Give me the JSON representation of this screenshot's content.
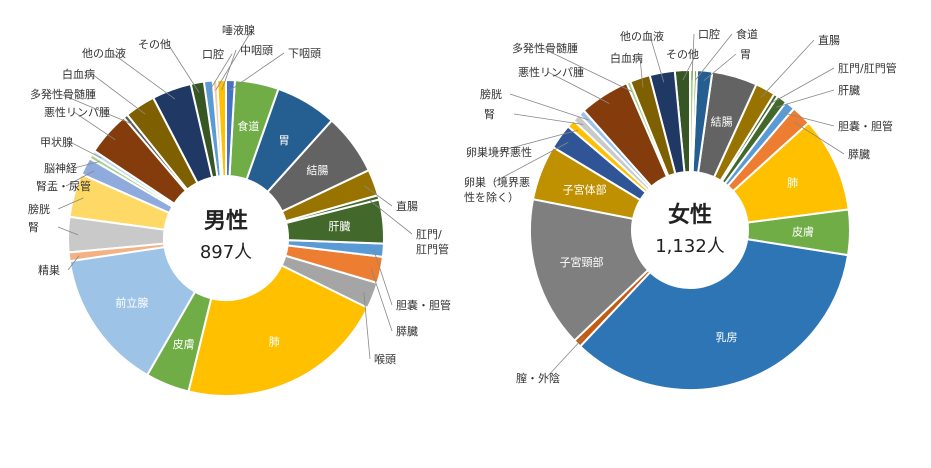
{
  "chart_data": [
    {
      "type": "pie",
      "donut": true,
      "title": "男性",
      "total_label": "897人",
      "slices": [
        {
          "label": "下咽頭",
          "value": 1,
          "color": "#4472C4"
        },
        {
          "label": "食道",
          "value": 5,
          "color": "#70AD47"
        },
        {
          "label": "胃",
          "value": 7,
          "color": "#255E91"
        },
        {
          "label": "結腸",
          "value": 7,
          "color": "#636363"
        },
        {
          "label": "直腸",
          "value": 3,
          "color": "#997300"
        },
        {
          "label": "肛門/\n肛門管",
          "value": 0.5,
          "color": "#43682B"
        },
        {
          "label": "肝臓",
          "value": 5,
          "color": "#43682B"
        },
        {
          "label": "胆嚢・胆管",
          "value": 1.5,
          "color": "#5B9BD5"
        },
        {
          "label": "膵臓",
          "value": 3,
          "color": "#ED7D31"
        },
        {
          "label": "喉頭",
          "value": 3,
          "color": "#A5A5A5"
        },
        {
          "label": "肺",
          "value": 24,
          "color": "#FFC000"
        },
        {
          "label": "皮膚",
          "value": 5,
          "color": "#70AD47"
        },
        {
          "label": "前立腺",
          "value": 16,
          "color": "#9DC3E6"
        },
        {
          "label": "精巣",
          "value": 1,
          "color": "#F4B183"
        },
        {
          "label": "腎",
          "value": 4,
          "color": "#C9C9C9"
        },
        {
          "label": "膀胱",
          "value": 5,
          "color": "#FFD966"
        },
        {
          "label": "腎盂・尿管",
          "value": 2,
          "color": "#8FAADC"
        },
        {
          "label": "脳神経",
          "value": 0.5,
          "color": "#A9D18E"
        },
        {
          "label": "甲状腺",
          "value": 0.5,
          "color": "#BDD7EE"
        },
        {
          "label": "悪性リンパ腫",
          "value": 5,
          "color": "#843C0C"
        },
        {
          "label": "多発性骨髄腫",
          "value": 0.5,
          "color": "#595959"
        },
        {
          "label": "白血病",
          "value": 3.5,
          "color": "#7F6000"
        },
        {
          "label": "他の血液",
          "value": 4.5,
          "color": "#203864"
        },
        {
          "label": "その他",
          "value": 1.5,
          "color": "#375623"
        },
        {
          "label": "口腔",
          "value": 1,
          "color": "#5B9BD5"
        },
        {
          "label": "唾液腺",
          "value": 0.5,
          "color": "#F8CBAD"
        },
        {
          "label": "中咽頭",
          "value": 1,
          "color": "#FFC000"
        }
      ]
    },
    {
      "type": "pie",
      "donut": true,
      "title": "女性",
      "total_label": "1,132人",
      "slices": [
        {
          "label": "口腔",
          "value": 0.4,
          "color": "#A9D18E"
        },
        {
          "label": "食道",
          "value": 0.3,
          "color": "#70AD47"
        },
        {
          "label": "胃",
          "value": 1.5,
          "color": "#255E91"
        },
        {
          "label": "結腸",
          "value": 4.5,
          "color": "#636363"
        },
        {
          "label": "直腸",
          "value": 2,
          "color": "#997300"
        },
        {
          "label": "肛門/肛門管",
          "value": 0.4,
          "color": "#43682B"
        },
        {
          "label": "肝臓",
          "value": 1,
          "color": "#43682B"
        },
        {
          "label": "胆嚢・胆管",
          "value": 1,
          "color": "#5B9BD5"
        },
        {
          "label": "膵臓",
          "value": 2,
          "color": "#ED7D31"
        },
        {
          "label": "肺",
          "value": 9.5,
          "color": "#FFC000"
        },
        {
          "label": "皮膚",
          "value": 4.5,
          "color": "#70AD47"
        },
        {
          "label": "乳房",
          "value": 34,
          "color": "#2E75B6"
        },
        {
          "label": "膣・外陰",
          "value": 0.8,
          "color": "#C55A11"
        },
        {
          "label": "子宮頸部",
          "value": 15,
          "color": "#7F7F7F"
        },
        {
          "label": "子宮体部",
          "value": 5.5,
          "color": "#BF9000"
        },
        {
          "label": "卵巣（境界悪\n性を除く）",
          "value": 2.5,
          "color": "#2F5597"
        },
        {
          "label": "卵巣境界悪性",
          "value": 0.8,
          "color": "#FFC000"
        },
        {
          "label": "腎",
          "value": 0.8,
          "color": "#C9C9C9"
        },
        {
          "label": "膀胱",
          "value": 0.6,
          "color": "#9DC3E6"
        },
        {
          "label": "悪性リンパ腫",
          "value": 5,
          "color": "#843C0C"
        },
        {
          "label": "多発性骨髄腫",
          "value": 0.4,
          "color": "#A9D18E"
        },
        {
          "label": "白血病",
          "value": 2,
          "color": "#7F6000"
        },
        {
          "label": "他の血液",
          "value": 2.5,
          "color": "#203864"
        },
        {
          "label": "その他",
          "value": 1.5,
          "color": "#375623"
        }
      ]
    }
  ]
}
